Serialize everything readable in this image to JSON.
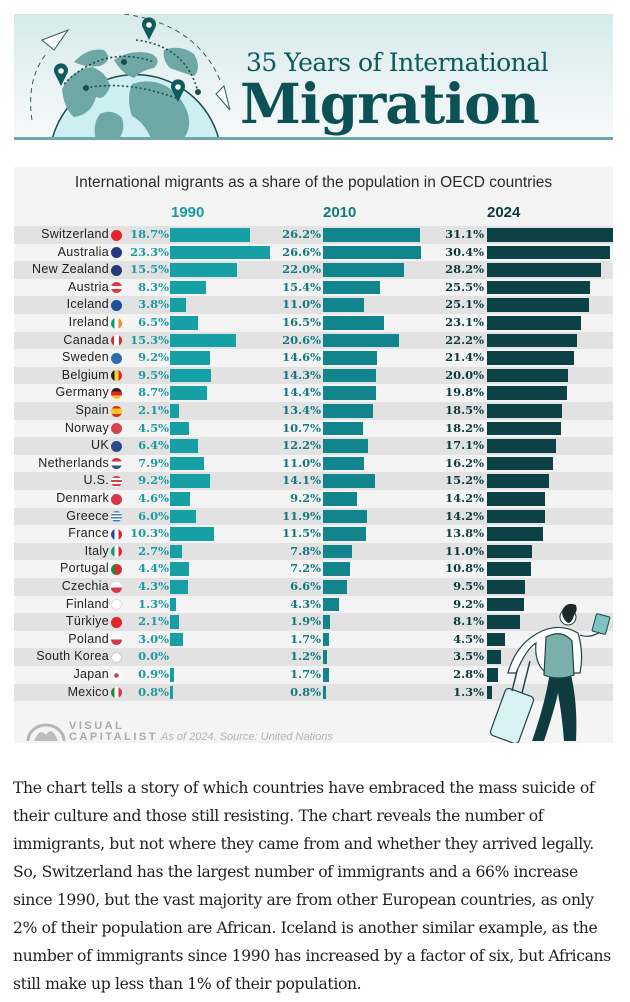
{
  "header": {
    "title_line1": "35 Years of International",
    "title_line2": "Migration"
  },
  "colors": {
    "brand_teal": "#0c5156",
    "bar_1990": "#16a0a4",
    "bar_2010": "#12858c",
    "bar_2024": "#0c4145",
    "stripe": "#e2e2e2",
    "background": "#f4f4f4"
  },
  "chart_data": {
    "type": "bar",
    "title": "International migrants as a share of the population in OECD countries",
    "xlabel": "",
    "ylabel": "",
    "unit": "%",
    "layout": "three side-by-side horizontal bar panels, one per year",
    "grid": false,
    "legend": "none (column headers)",
    "categories": [
      "Switzerland",
      "Australia",
      "New Zealand",
      "Austria",
      "Iceland",
      "Ireland",
      "Canada",
      "Sweden",
      "Belgium",
      "Germany",
      "Spain",
      "Norway",
      "UK",
      "Netherlands",
      "U.S.",
      "Denmark",
      "Greece",
      "France",
      "Italy",
      "Portugal",
      "Czechia",
      "Finland",
      "Türkiye",
      "Poland",
      "South Korea",
      "Japan",
      "Mexico"
    ],
    "flags": [
      "flag-switzerland-icon",
      "flag-australia-icon",
      "flag-new-zealand-icon",
      "flag-austria-icon",
      "flag-iceland-icon",
      "flag-ireland-icon",
      "flag-canada-icon",
      "flag-sweden-icon",
      "flag-belgium-icon",
      "flag-germany-icon",
      "flag-spain-icon",
      "flag-norway-icon",
      "flag-uk-icon",
      "flag-netherlands-icon",
      "flag-us-icon",
      "flag-denmark-icon",
      "flag-greece-icon",
      "flag-france-icon",
      "flag-italy-icon",
      "flag-portugal-icon",
      "flag-czechia-icon",
      "flag-finland-icon",
      "flag-turkiye-icon",
      "flag-poland-icon",
      "flag-south-korea-icon",
      "flag-japan-icon",
      "flag-mexico-icon"
    ],
    "series": [
      {
        "name": "1990",
        "values": [
          18.7,
          23.3,
          15.5,
          8.3,
          3.8,
          6.5,
          15.3,
          9.2,
          9.5,
          8.7,
          2.1,
          4.5,
          6.4,
          7.9,
          9.2,
          4.6,
          6.0,
          10.3,
          2.7,
          4.4,
          4.3,
          1.3,
          2.1,
          3.0,
          0.0,
          0.9,
          0.8
        ]
      },
      {
        "name": "2010",
        "values": [
          26.2,
          26.6,
          22.0,
          15.4,
          11.0,
          16.5,
          20.6,
          14.6,
          14.3,
          14.4,
          13.4,
          10.7,
          12.2,
          11.0,
          14.1,
          9.2,
          11.9,
          11.5,
          7.8,
          7.2,
          6.6,
          4.3,
          1.9,
          1.7,
          1.2,
          1.7,
          0.8
        ]
      },
      {
        "name": "2024",
        "values": [
          31.1,
          30.4,
          28.2,
          25.5,
          25.1,
          23.1,
          22.2,
          21.4,
          20.0,
          19.8,
          18.5,
          18.2,
          17.1,
          16.2,
          15.2,
          14.2,
          14.2,
          13.8,
          11.0,
          10.8,
          9.5,
          9.2,
          8.1,
          4.5,
          3.5,
          2.8,
          1.3
        ]
      }
    ],
    "xlim": [
      0,
      35
    ],
    "footer": {
      "brand_line1": "VISUAL",
      "brand_line2": "CAPITALIST",
      "source": "As of 2024. Source: United Nations"
    }
  },
  "article": {
    "paragraph": "The chart tells a story of which countries have embraced the mass suicide of their culture and those still resisting. The chart reveals the number of immigrants, but not where they came from and whether they arrived legally. So, Switzerland has the largest number of immigrants and a 66% increase since 1990, but the vast majority are from other European countries, as only 2% of their population are African. Iceland is another similar example, as the number of immigrants since 1990 has increased by a factor of six, but Africans still make up less than 1% of their population."
  }
}
